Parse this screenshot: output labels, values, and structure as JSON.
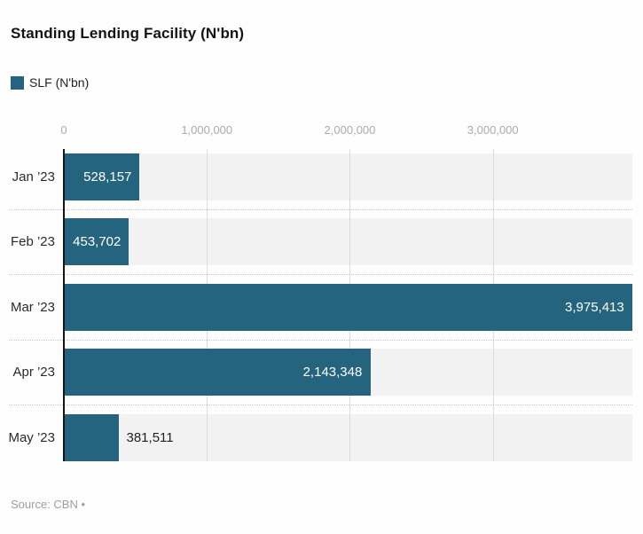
{
  "title": "Standing Lending Facility (N'bn)",
  "legend": {
    "label": "SLF (N'bn)",
    "color": "#25647f"
  },
  "source": "Source: CBN •",
  "chart_data": {
    "type": "bar",
    "orientation": "horizontal",
    "title": "Standing Lending Facility (N'bn)",
    "series_name": "SLF (N'bn)",
    "categories": [
      "Jan ’23",
      "Feb ’23",
      "Mar ’23",
      "Apr ’23",
      "May ’23"
    ],
    "values": [
      528157,
      453702,
      3975413,
      2143348,
      381511
    ],
    "value_labels": [
      "528,157",
      "453,702",
      "3,975,413",
      "2,143,348",
      "381,511"
    ],
    "x_ticks": [
      0,
      1000000,
      2000000,
      3000000
    ],
    "x_tick_labels": [
      "0",
      "1,000,000",
      "2,000,000",
      "3,000,000"
    ],
    "xlim": [
      0,
      3975413
    ],
    "xlabel": "",
    "ylabel": "",
    "grid": true,
    "legend_position": "top-left",
    "bar_color": "#25647f",
    "row_background": "#f2f2f2"
  }
}
